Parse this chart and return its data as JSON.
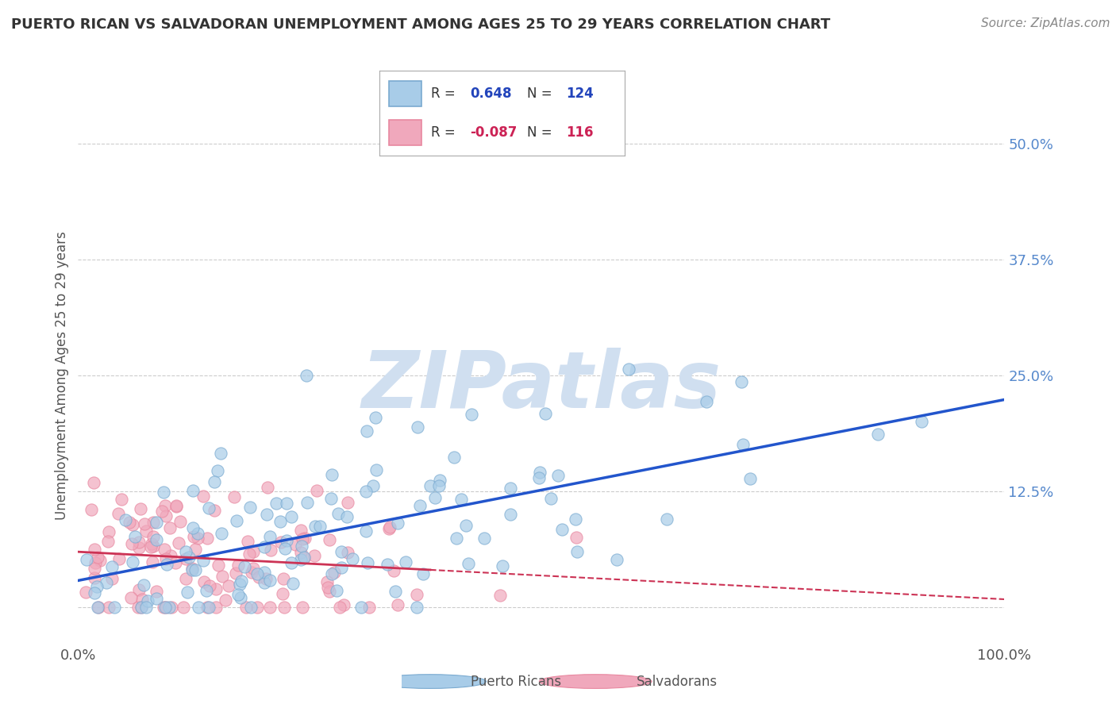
{
  "title": "PUERTO RICAN VS SALVADORAN UNEMPLOYMENT AMONG AGES 25 TO 29 YEARS CORRELATION CHART",
  "source": "Source: ZipAtlas.com",
  "ylabel": "Unemployment Among Ages 25 to 29 years",
  "xlim": [
    0,
    1.0
  ],
  "ylim": [
    -0.04,
    0.54
  ],
  "x_ticks": [
    0.0,
    1.0
  ],
  "x_tick_labels": [
    "0.0%",
    "100.0%"
  ],
  "y_ticks": [
    0.0,
    0.125,
    0.25,
    0.375,
    0.5
  ],
  "y_tick_labels": [
    "",
    "12.5%",
    "25.0%",
    "37.5%",
    "50.0%"
  ],
  "pr_R": 0.648,
  "pr_N": 124,
  "sv_R": -0.087,
  "sv_N": 116,
  "blue_color": "#a8cce8",
  "pink_color": "#f0a8bc",
  "blue_edge_color": "#7aaad0",
  "pink_edge_color": "#e888a0",
  "blue_line_color": "#2255cc",
  "pink_line_color": "#cc3355",
  "watermark": "ZIPatlas",
  "watermark_color": "#d0dff0",
  "background_color": "#ffffff",
  "grid_color": "#cccccc",
  "title_color": "#333333",
  "pr_seed": 42,
  "sv_seed": 7
}
